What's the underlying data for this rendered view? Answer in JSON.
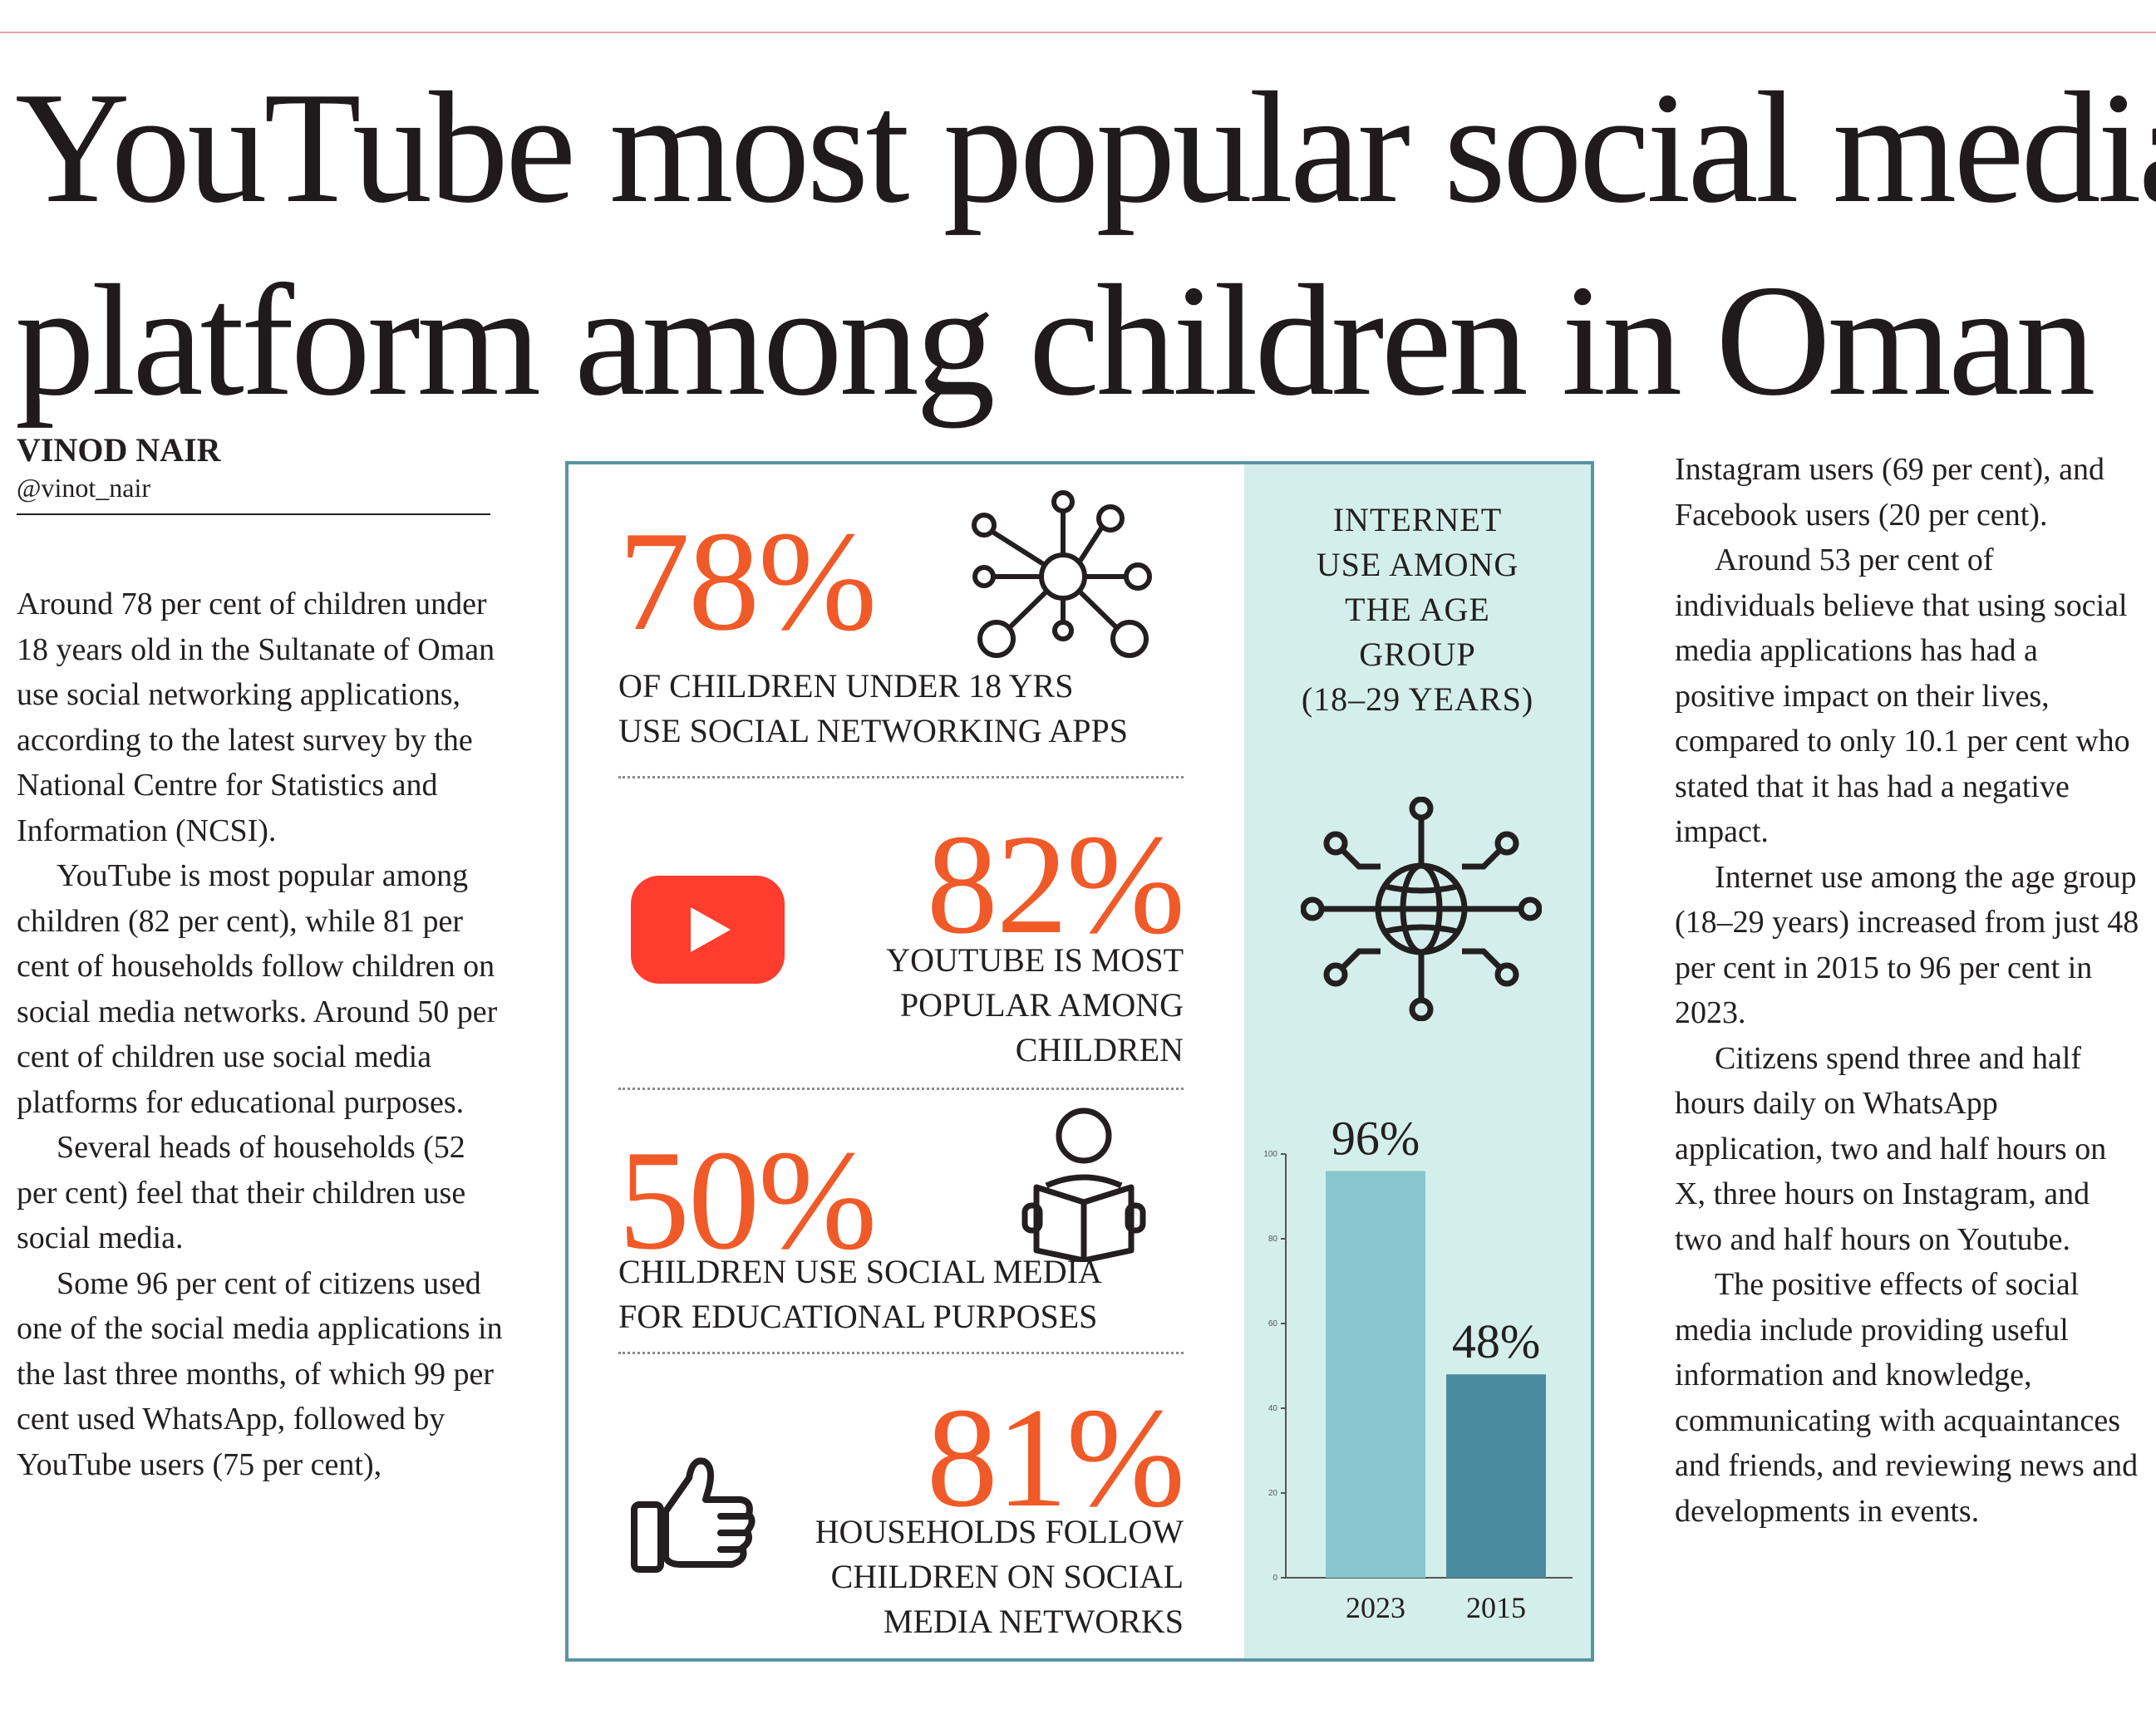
{
  "headline": {
    "line1": "YouTube most popular social media",
    "line2": "platform among children in Oman"
  },
  "byline": {
    "author": "VINOD NAIR",
    "handle": "@vinot_nair"
  },
  "left_column": [
    "Around 78 per cent of children under 18 years old in the Sultanate of Oman use social networking applications, according to the latest survey by the National Centre for Statistics and Information (NCSI).",
    "YouTube is most popular among children (82 per cent), while 81 per cent of households follow children on social media networks. Around 50 per cent of children use social media platforms for educational purposes.",
    "Several heads of households (52 per cent) feel that their children use social media.",
    "Some 96 per cent of citizens used one of the social media applications in the last three months, of which 99 per cent used WhatsApp, followed by YouTube users (75 per cent),"
  ],
  "right_column": [
    "Instagram users (69 per cent), and Facebook users (20 per cent).",
    "Around 53 per cent of individuals believe that using social media applications has had a positive impact on their lives, compared to only 10.1 per cent who stated that it has had a negative impact.",
    "Internet use among the age group (18–29 years) increased from just 48 per cent in 2015 to 96 per cent in 2023.",
    "Citizens spend three and half hours daily on WhatsApp application, two and half hours on X, three hours on Instagram, and two and half hours on Youtube.",
    "The positive effects of social media include providing useful information and knowledge, communicating with acquaintances and friends, and reviewing news and developments in events."
  ],
  "infographic": {
    "stats": [
      {
        "value": "78%",
        "caption_lines": [
          "OF CHILDREN UNDER 18 YRS",
          "USE SOCIAL NETWORKING APPS"
        ],
        "icon": "network-icon"
      },
      {
        "value": "82%",
        "caption_lines": [
          "YOUTUBE IS MOST",
          "POPULAR AMONG",
          "CHILDREN"
        ],
        "icon": "youtube-logo-icon"
      },
      {
        "value": "50%",
        "caption_lines": [
          "CHILDREN USE SOCIAL MEDIA",
          "FOR EDUCATIONAL PURPOSES"
        ],
        "icon": "reading-person-icon"
      },
      {
        "value": "81%",
        "caption_lines": [
          "HOUSEHOLDS FOLLOW",
          "CHILDREN ON SOCIAL",
          "MEDIA NETWORKS"
        ],
        "icon": "thumbs-up-icon"
      }
    ],
    "panel_title_lines": [
      "INTERNET",
      "USE AMONG",
      "THE AGE",
      "GROUP",
      "(18–29 YEARS)"
    ],
    "panel_icon": "globe-network-icon",
    "colors": {
      "accent": "#f05a28",
      "panel": "#d4efeb",
      "border": "#5a93a3",
      "bar_2023": "#87c7cb",
      "bar_2015": "#4a8b9f",
      "youtube": "#ff3d2e"
    }
  },
  "chart_data": {
    "type": "bar",
    "categories": [
      "2023",
      "2015"
    ],
    "values": [
      96,
      48
    ],
    "value_labels": [
      "96%",
      "48%"
    ],
    "ylim": [
      0,
      100
    ],
    "yticks": [
      0,
      20,
      40,
      60,
      80,
      100
    ],
    "title": "",
    "xlabel": "",
    "ylabel": ""
  }
}
